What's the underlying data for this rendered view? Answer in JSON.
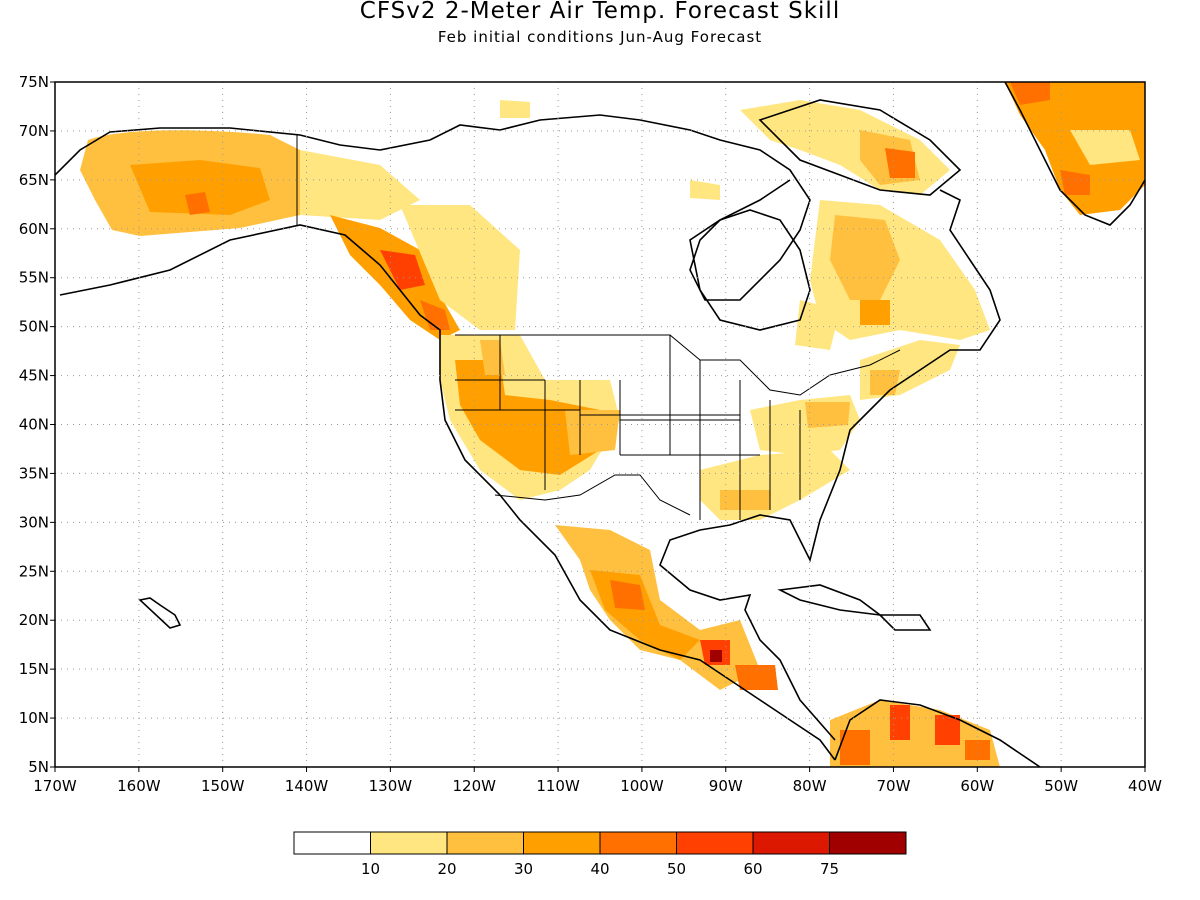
{
  "header": {
    "title": "CFSv2 2-Meter Air Temp. Forecast Skill",
    "subtitle": "Feb initial conditions   Jun-Aug Forecast"
  },
  "map": {
    "lat_labels": [
      "75N",
      "70N",
      "65N",
      "60N",
      "55N",
      "50N",
      "45N",
      "40N",
      "35N",
      "30N",
      "25N",
      "20N",
      "15N",
      "10N",
      "5N"
    ],
    "lon_labels": [
      "170W",
      "160W",
      "150W",
      "140W",
      "130W",
      "120W",
      "110W",
      "100W",
      "90W",
      "80W",
      "70W",
      "60W",
      "50W",
      "40W"
    ],
    "lat_range": [
      5,
      75
    ],
    "lon_range": [
      -170,
      -40
    ],
    "grid": true
  },
  "legend": {
    "labels": [
      "10",
      "20",
      "30",
      "40",
      "50",
      "60",
      "75"
    ],
    "colors": [
      "#ffffff",
      "#ffe680",
      "#ffc040",
      "#ffa000",
      "#ff7000",
      "#ff4000",
      "#dd1800",
      "#a00000"
    ]
  }
}
